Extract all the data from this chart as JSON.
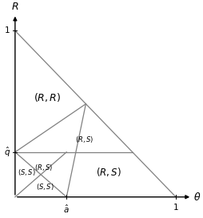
{
  "q_hat": 0.27,
  "a_hat": 0.32,
  "xlim_max": 1.1,
  "ylim_max": 1.1,
  "line_color": "#808080",
  "bg_color": "#ffffff",
  "fontsize_RR": 9,
  "fontsize_RS_big": 8.5,
  "fontsize_RS_small": 6,
  "fontsize_SS": 6,
  "fontsize_tick": 7.5,
  "fontsize_axis": 9
}
